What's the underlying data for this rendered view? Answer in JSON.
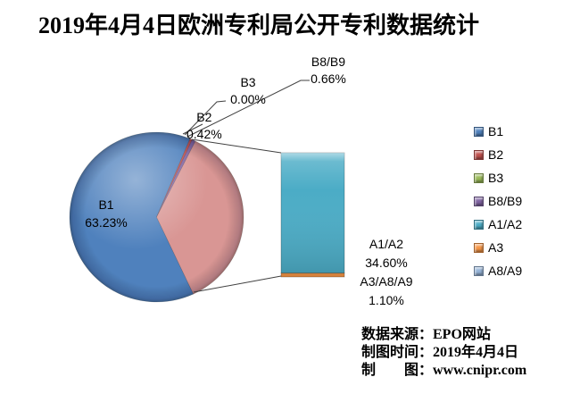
{
  "title": "2019年4月4日欧洲专利局公开专利数据统计",
  "chart_data": {
    "type": "pie",
    "subtype": "bar-of-pie",
    "title": "2019年4月4日欧洲专利局公开专利数据统计",
    "legend_position": "right",
    "pie": {
      "start_angle_deg": 155,
      "direction": "clockwise",
      "slices": [
        {
          "name": "B1",
          "value": 63.23,
          "color": "#4F81BD",
          "label": "B1 63.23%"
        },
        {
          "name": "B2",
          "value": 0.42,
          "color": "#C0504D",
          "label": "B2 0.42%"
        },
        {
          "name": "B3",
          "value": 0.0,
          "color": "#9BBB59",
          "label": "B3 0.00%"
        },
        {
          "name": "B8/B9",
          "value": 0.66,
          "color": "#8064A2",
          "label": "B8/B9 0.66%"
        },
        {
          "name": "A1/A2 + A3/A8/A9",
          "value": 35.7,
          "color": "#D99694",
          "other": true
        }
      ]
    },
    "bar": {
      "segments": [
        {
          "name": "A1/A2",
          "value": 34.6,
          "color": "#4BACC6",
          "label": "A1/A2 34.60%"
        },
        {
          "name": "A3/A8/A9",
          "value": 1.1,
          "color": "#F79646",
          "label": "A3/A8/A9 1.10%"
        }
      ]
    }
  },
  "labels": {
    "b1": {
      "name": "B1",
      "pct": "63.23%"
    },
    "b2": {
      "name": "B2",
      "pct": "0.42%"
    },
    "b3": {
      "name": "B3",
      "pct": "0.00%"
    },
    "b8b9": {
      "name": "B8/B9",
      "pct": "0.66%"
    },
    "a1a2": {
      "name": "A1/A2",
      "pct": "34.60%"
    },
    "a3a8a9": {
      "name": "A3/A8/A9",
      "pct": "1.10%"
    }
  },
  "legend": {
    "items": [
      {
        "label": "B1",
        "color": "#4F81BD"
      },
      {
        "label": "B2",
        "color": "#C0504D"
      },
      {
        "label": "B3",
        "color": "#9BBB59"
      },
      {
        "label": "B8/B9",
        "color": "#8064A2"
      },
      {
        "label": "A1/A2",
        "color": "#4BACC6"
      },
      {
        "label": "A3",
        "color": "#F79646"
      },
      {
        "label": "A8/A9",
        "color": "#95B3D7"
      }
    ]
  },
  "footer": {
    "lines": [
      "数据来源：EPO网站",
      "制图时间：2019年4月4日",
      "制　　图：www.cnipr.com"
    ]
  }
}
